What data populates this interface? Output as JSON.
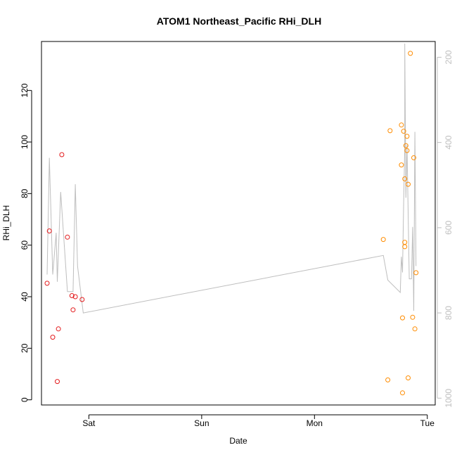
{
  "chart_data": {
    "type": "scatter",
    "title": "ATOM1 Northeast_Pacific RHi_DLH",
    "xlabel": "Date",
    "ylabel": "RHi_DLH",
    "x_ticks": [
      "Sat",
      "Sun",
      "Mon",
      "Tue"
    ],
    "y_ticks": [
      "0",
      "20",
      "40",
      "60",
      "80",
      "100",
      "120"
    ],
    "y_right_ticks": [
      "200",
      "400",
      "600",
      "800",
      "1000"
    ],
    "xlim_days": [
      -0.42,
      3.07
    ],
    "ylim": [
      -2,
      139
    ],
    "y_right_lim": [
      1016,
      163
    ],
    "colors": {
      "red_series": "#e31a1c",
      "orange_series": "#ff8c00",
      "line": "#bebebe"
    },
    "series": [
      {
        "color_key": "red_series",
        "points": [
          [
            -0.37,
            45.2
          ],
          [
            -0.35,
            65.5
          ],
          [
            -0.32,
            24.3
          ],
          [
            -0.28,
            7.1
          ],
          [
            -0.27,
            27.5
          ],
          [
            -0.24,
            95.1
          ],
          [
            -0.19,
            63.1
          ],
          [
            -0.15,
            40.4
          ],
          [
            -0.14,
            34.9
          ],
          [
            -0.12,
            40.0
          ],
          [
            -0.06,
            38.9
          ]
        ]
      },
      {
        "color_key": "orange_series",
        "points": [
          [
            2.61,
            62.2
          ],
          [
            2.65,
            7.7
          ],
          [
            2.67,
            104.4
          ],
          [
            2.77,
            106.6
          ],
          [
            2.77,
            91.1
          ],
          [
            2.78,
            31.8
          ],
          [
            2.78,
            2.7
          ],
          [
            2.79,
            104.2
          ],
          [
            2.8,
            59.4
          ],
          [
            2.8,
            61.1
          ],
          [
            2.8,
            85.7
          ],
          [
            2.81,
            98.6
          ],
          [
            2.82,
            102.2
          ],
          [
            2.82,
            96.7
          ],
          [
            2.83,
            83.6
          ],
          [
            2.83,
            8.5
          ],
          [
            2.85,
            134.4
          ],
          [
            2.87,
            32.0
          ],
          [
            2.88,
            93.9
          ],
          [
            2.89,
            27.5
          ],
          [
            2.9,
            49.3
          ]
        ]
      }
    ],
    "line_series": {
      "axis": "right",
      "points": [
        [
          -0.37,
          710
        ],
        [
          -0.35,
          436
        ],
        [
          -0.32,
          710
        ],
        [
          -0.29,
          612
        ],
        [
          -0.28,
          727
        ],
        [
          -0.25,
          516
        ],
        [
          -0.19,
          750
        ],
        [
          -0.14,
          750
        ],
        [
          -0.12,
          498
        ],
        [
          -0.1,
          690
        ],
        [
          -0.05,
          800
        ],
        [
          2.61,
          665
        ],
        [
          2.65,
          723
        ],
        [
          2.76,
          752
        ],
        [
          2.77,
          668
        ],
        [
          2.78,
          705
        ],
        [
          2.79,
          543
        ],
        [
          2.8,
          410
        ],
        [
          2.8,
          168
        ],
        [
          2.81,
          530
        ],
        [
          2.82,
          406
        ],
        [
          2.84,
          720
        ],
        [
          2.86,
          720
        ],
        [
          2.87,
          598
        ],
        [
          2.88,
          795
        ],
        [
          2.89,
          375
        ],
        [
          2.9,
          690
        ]
      ]
    }
  }
}
